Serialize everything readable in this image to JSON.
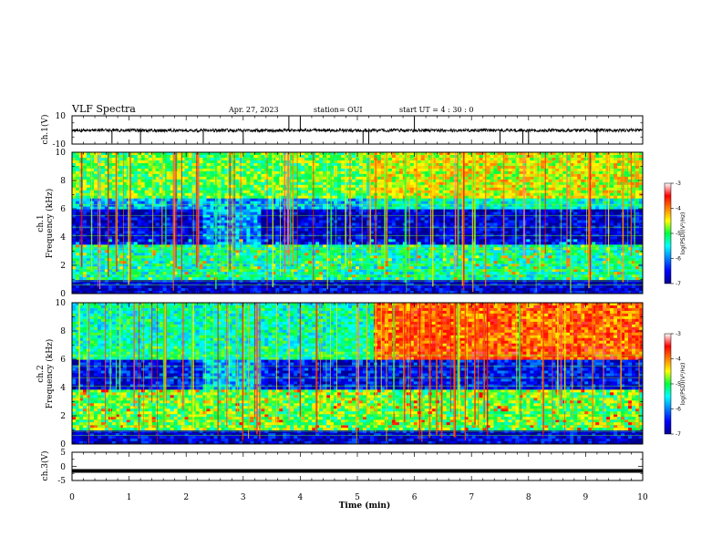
{
  "header": {
    "title": "VLF Spectra",
    "date": "Apr. 27, 2023",
    "station": "station= OUI",
    "start": "start  UT =   4 : 30 : 0"
  },
  "chart_data": [
    {
      "type": "line",
      "panel": "waveform",
      "ylabel": "ch.1(V)",
      "ylim": [
        -10,
        10
      ],
      "yticks": [
        "10",
        "-10"
      ],
      "baseline": -0.3,
      "spikes_min": [
        0.0,
        0.7,
        1.2,
        2.3,
        3.0,
        3.8,
        4.0,
        5.1,
        5.2,
        6.0,
        7.5,
        7.9,
        8.0,
        9.2
      ]
    },
    {
      "type": "heatmap",
      "panel": "ch1",
      "ylabel_line1": "ch.1",
      "ylabel_line2": "Frequency (kHz)",
      "ylim": [
        0,
        10
      ],
      "yticks": [
        "0",
        "2",
        "4",
        "6",
        "8",
        "10"
      ],
      "colorbar": {
        "label": "log(PSD)(V²/Hz)",
        "ticks": [
          "-3",
          "-4",
          "-5",
          "-6",
          "-7"
        ],
        "range": [
          -7,
          -3
        ]
      },
      "bands": [
        {
          "f0": 0,
          "f1": 1.0,
          "level": -6.7
        },
        {
          "f0": 1.0,
          "f1": 3.5,
          "level": -5.3
        },
        {
          "f0": 3.5,
          "f1": 6.0,
          "level": -6.7
        },
        {
          "f0": 6.0,
          "f1": 6.8,
          "level": -5.8
        },
        {
          "f0": 6.8,
          "f1": 10,
          "level": -4.9
        }
      ]
    },
    {
      "type": "heatmap",
      "panel": "ch2",
      "ylabel_line1": "ch.2",
      "ylabel_line2": "Frequency (kHz)",
      "ylim": [
        0,
        10
      ],
      "yticks": [
        "0",
        "2",
        "4",
        "6",
        "8",
        "10"
      ],
      "colorbar": {
        "label": "log(PSD)(V²/Hz)",
        "ticks": [
          "-3",
          "-4",
          "-5",
          "-6",
          "-7"
        ],
        "range": [
          -7,
          -3
        ]
      },
      "bands": [
        {
          "f0": 0,
          "f1": 1.0,
          "level": -6.7
        },
        {
          "f0": 1.0,
          "f1": 3.8,
          "level": -4.9
        },
        {
          "f0": 3.8,
          "f1": 6.0,
          "level": -6.5
        },
        {
          "f0": 6.0,
          "f1": 6.9,
          "level": -4.7
        },
        {
          "f0": 6.9,
          "f1": 10,
          "level": -4.8
        }
      ]
    },
    {
      "type": "line",
      "panel": "ch3",
      "ylabel": "ch.3(V)",
      "ylim": [
        -5,
        5
      ],
      "yticks": [
        "5",
        "0",
        "-5"
      ],
      "baseline": -1.6
    }
  ],
  "xaxis": {
    "label": "Time  (min)",
    "xlim": [
      0,
      10
    ],
    "ticks": [
      "0",
      "1",
      "2",
      "3",
      "4",
      "5",
      "6",
      "7",
      "8",
      "9",
      "10"
    ]
  }
}
